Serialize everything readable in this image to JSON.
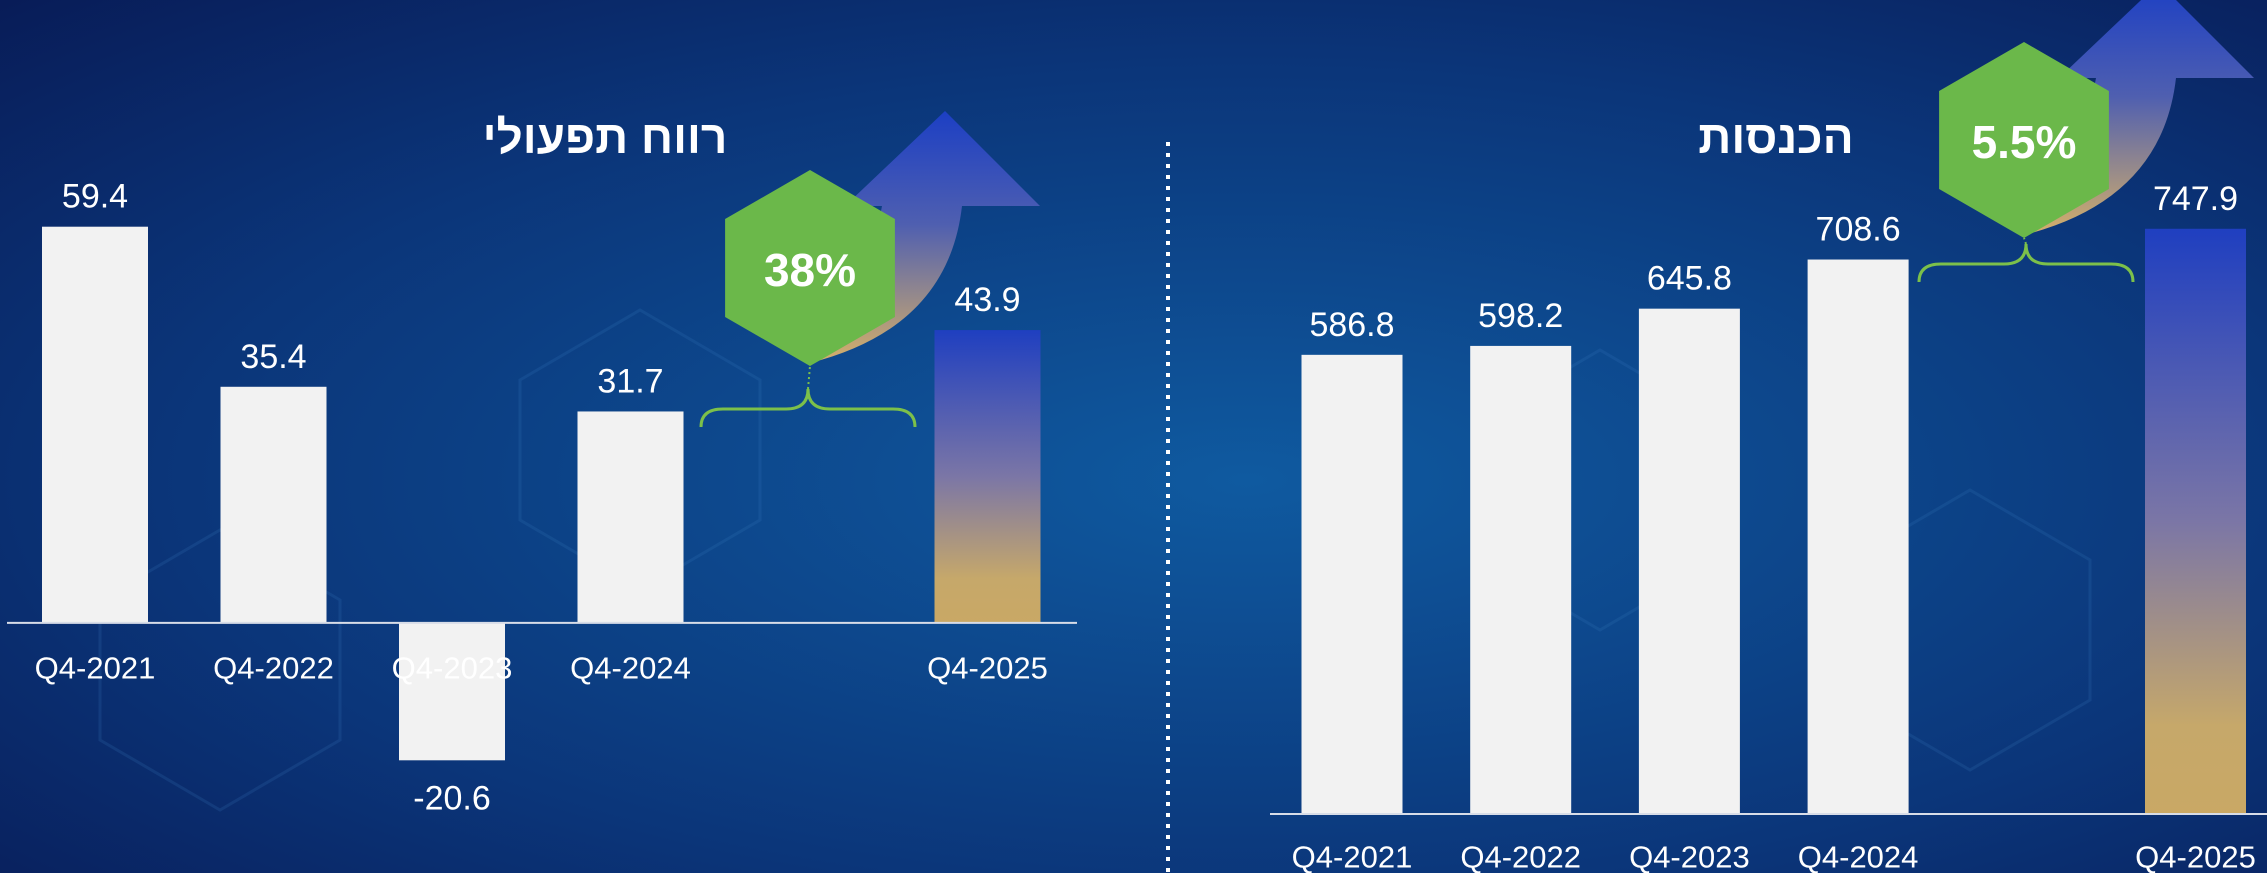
{
  "chart_data": [
    {
      "type": "bar",
      "title": "רווח תפעולי",
      "categories": [
        "Q4-2021",
        "Q4-2022",
        "Q4-2023",
        "Q4-2024",
        "Q4-2025"
      ],
      "values": [
        59.4,
        35.4,
        -20.6,
        31.7,
        43.9
      ],
      "color": "#f2f2f2",
      "ylim": [
        -30,
        70
      ],
      "annotation": "38%"
    },
    {
      "type": "bar",
      "title": "הכנסות",
      "categories": [
        "Q4-2021",
        "Q4-2022",
        "Q4-2023",
        "Q4-2024",
        "Q4-2025"
      ],
      "values": [
        586.8,
        598.2,
        645.8,
        708.6,
        747.9
      ],
      "color": "#f2f2f2",
      "ylim": [
        0,
        800
      ],
      "annotation": "5.5%"
    }
  ]
}
